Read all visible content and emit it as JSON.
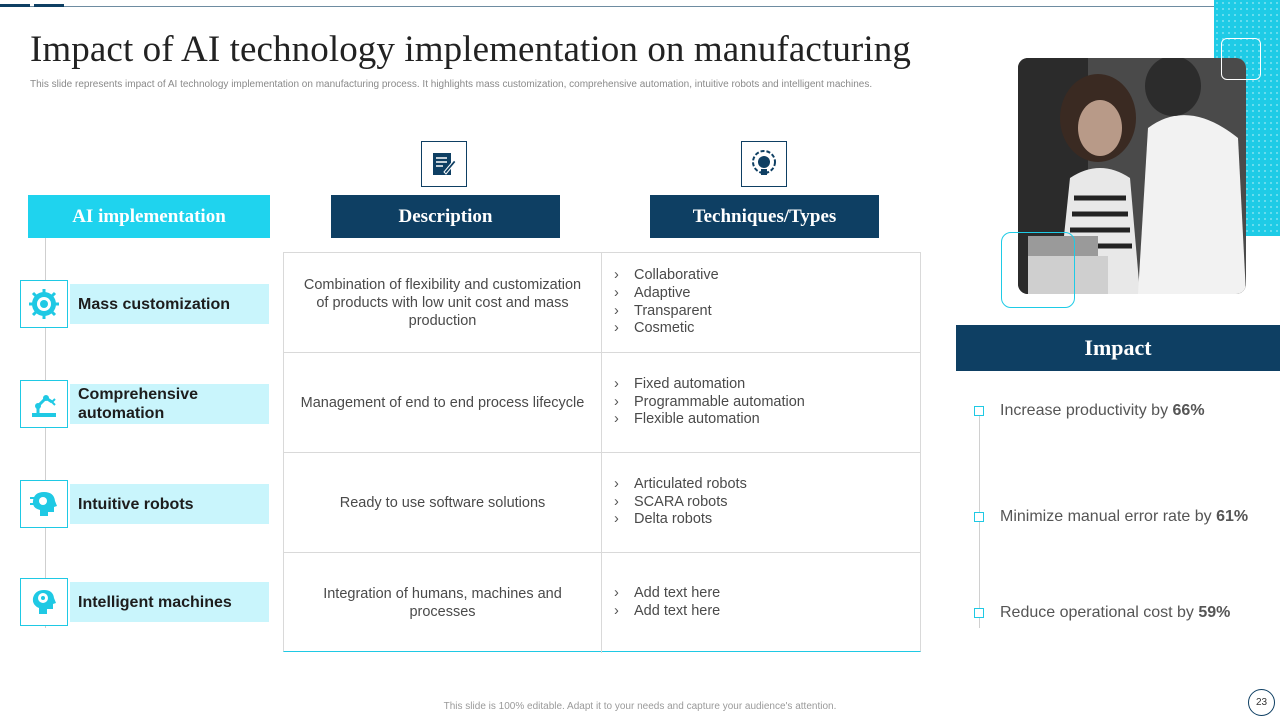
{
  "slide": {
    "title": "Impact of AI technology implementation on manufacturing",
    "subtitle": "This slide represents impact of AI technology implementation  on manufacturing process. It highlights mass customization, comprehensive automation, intuitive robots and intelligent machines.",
    "footer": "This slide is 100% editable. Adapt it to your needs and capture your audience's attention.",
    "page_number": "23"
  },
  "columns": {
    "ai": "AI implementation",
    "description": "Description",
    "techniques": "Techniques/Types"
  },
  "rows": [
    {
      "name": "Mass customization",
      "icon": "gear-icon",
      "description": "Combination of flexibility and customization of products with low unit cost and mass production",
      "techniques": [
        "Collaborative",
        "Adaptive",
        "Transparent",
        "Cosmetic"
      ]
    },
    {
      "name": "Comprehensive automation",
      "icon": "robot-arm-icon",
      "description": "Management of end to end process lifecycle",
      "techniques": [
        "Fixed automation",
        "Programmable automation",
        "Flexible automation"
      ]
    },
    {
      "name": "Intuitive robots",
      "icon": "ai-head-icon",
      "description": "Ready to use software solutions",
      "techniques": [
        "Articulated robots",
        "SCARA robots",
        "Delta robots"
      ]
    },
    {
      "name": "Intelligent machines",
      "icon": "brain-icon",
      "description": "Integration of humans, machines and processes",
      "techniques": [
        "Add text here",
        "Add text here"
      ]
    }
  ],
  "impact": {
    "title": "Impact",
    "items": [
      {
        "text": "Increase productivity by ",
        "value": "66%"
      },
      {
        "text": "Minimize manual error rate by ",
        "value": "61%"
      },
      {
        "text": "Reduce operational cost by ",
        "value": "59%"
      }
    ]
  },
  "colors": {
    "navy": "#0e3f63",
    "cyan": "#1fd3ee",
    "light_cyan": "#c9f5fc"
  },
  "icons": {
    "description": "document-edit-icon",
    "techniques": "lightbulb-gear-icon",
    "photo": "people-working-photo"
  }
}
